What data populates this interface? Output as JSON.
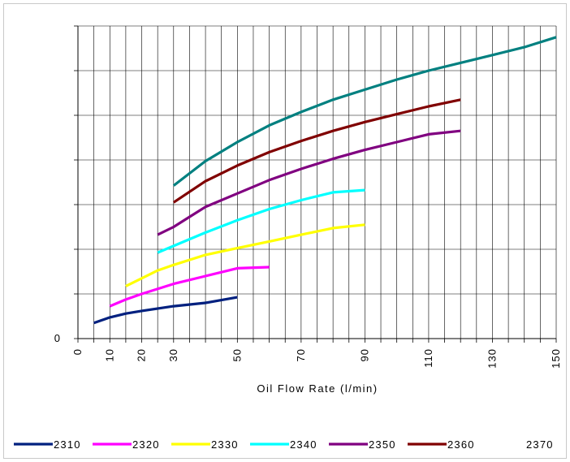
{
  "chart_data": {
    "type": "line",
    "xlabel": "Oil Flow Rate (l/min)",
    "ylabel": "",
    "x_ticks": [
      "0",
      "10",
      "20",
      "30",
      "50",
      "70",
      "90",
      "110",
      "130",
      "150"
    ],
    "x_tick_values": [
      0,
      10,
      20,
      30,
      50,
      70,
      90,
      110,
      130,
      150
    ],
    "xlim": [
      0,
      150
    ],
    "y_tick_label": "0",
    "ylim": [
      0,
      14
    ],
    "y_gridlines": 7,
    "grid": true,
    "legend_position": "bottom",
    "series": [
      {
        "name": "2310",
        "color": "#00207f",
        "x": [
          5,
          10,
          15,
          20,
          30,
          40,
          50
        ],
        "y": [
          0.7,
          0.95,
          1.12,
          1.24,
          1.45,
          1.6,
          1.85
        ]
      },
      {
        "name": "2320",
        "color": "#ff00ff",
        "x": [
          10,
          15,
          20,
          30,
          40,
          50,
          60
        ],
        "y": [
          1.45,
          1.75,
          2.0,
          2.45,
          2.8,
          3.15,
          3.2
        ]
      },
      {
        "name": "2330",
        "color": "#ffff00",
        "x": [
          15,
          20,
          25,
          30,
          40,
          50,
          60,
          70,
          80,
          90
        ],
        "y": [
          2.35,
          2.7,
          3.05,
          3.3,
          3.75,
          4.05,
          4.35,
          4.65,
          4.95,
          5.1
        ]
      },
      {
        "name": "2340",
        "color": "#00ffff",
        "x": [
          25,
          30,
          35,
          40,
          50,
          60,
          70,
          80,
          90
        ],
        "y": [
          3.85,
          4.15,
          4.45,
          4.75,
          5.3,
          5.8,
          6.2,
          6.55,
          6.65
        ]
      },
      {
        "name": "2350",
        "color": "#800080",
        "x": [
          25,
          30,
          35,
          40,
          50,
          60,
          70,
          80,
          90,
          100,
          110,
          120
        ],
        "y": [
          4.65,
          5.0,
          5.45,
          5.9,
          6.5,
          7.1,
          7.6,
          8.05,
          8.45,
          8.8,
          9.15,
          9.3
        ]
      },
      {
        "name": "2360",
        "color": "#800000",
        "x": [
          30,
          40,
          50,
          60,
          70,
          80,
          90,
          100,
          110,
          120
        ],
        "y": [
          6.1,
          7.05,
          7.75,
          8.35,
          8.85,
          9.3,
          9.7,
          10.05,
          10.4,
          10.7
        ]
      },
      {
        "name": "2370",
        "color": "#008080",
        "x": [
          30,
          40,
          50,
          60,
          70,
          80,
          90,
          100,
          110,
          120,
          130,
          140,
          150
        ],
        "y": [
          6.85,
          7.95,
          8.8,
          9.55,
          10.15,
          10.7,
          11.15,
          11.6,
          12.0,
          12.35,
          12.7,
          13.05,
          13.5
        ]
      }
    ]
  }
}
